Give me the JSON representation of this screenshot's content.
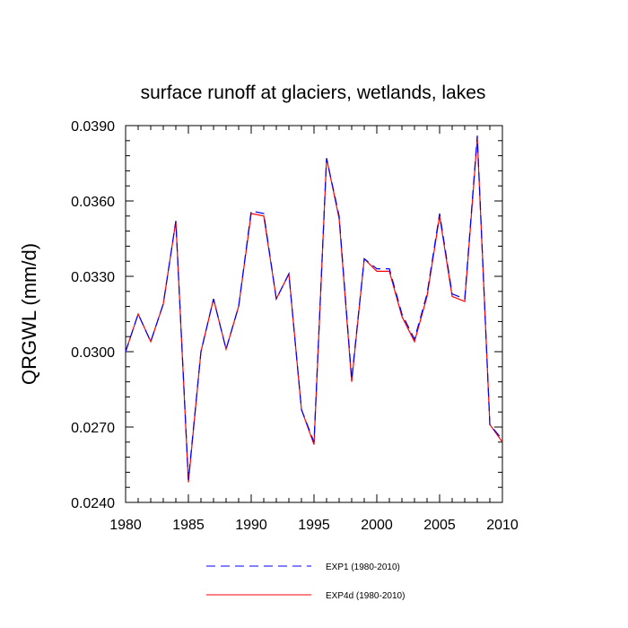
{
  "chart_data": {
    "type": "line",
    "title": "surface runoff at glaciers, wetlands, lakes",
    "xlabel": "",
    "ylabel": "QRGWL  (mm/d)",
    "xlim": [
      1980,
      2010
    ],
    "ylim": [
      0.024,
      0.039
    ],
    "x_ticks": [
      1980,
      1985,
      1990,
      1995,
      2000,
      2005,
      2010
    ],
    "y_ticks": [
      "0.0240",
      "0.0270",
      "0.0300",
      "0.0330",
      "0.0360",
      "0.0390"
    ],
    "x": [
      1980,
      1981,
      1982,
      1983,
      1984,
      1985,
      1986,
      1987,
      1988,
      1989,
      1990,
      1991,
      1992,
      1993,
      1994,
      1995,
      1996,
      1997,
      1998,
      1999,
      2000,
      2001,
      2002,
      2003,
      2004,
      2005,
      2006,
      2007,
      2008,
      2009,
      2010
    ],
    "series": [
      {
        "name": "EXP1 (1980-2010)",
        "color": "#0000ff",
        "dash": "dashed",
        "values": [
          0.03,
          0.0315,
          0.0304,
          0.0319,
          0.0352,
          0.0249,
          0.03,
          0.0321,
          0.0301,
          0.0318,
          0.0356,
          0.0355,
          0.0321,
          0.0331,
          0.0277,
          0.0264,
          0.0377,
          0.0354,
          0.0289,
          0.0337,
          0.0333,
          0.0333,
          0.0315,
          0.0305,
          0.0323,
          0.0355,
          0.0323,
          0.0321,
          0.0386,
          0.0271,
          0.0265
        ]
      },
      {
        "name": "EXP4d (1980-2010)",
        "color": "#ff0000",
        "dash": "solid",
        "values": [
          0.03,
          0.0315,
          0.0304,
          0.0319,
          0.0352,
          0.0248,
          0.03,
          0.0321,
          0.0301,
          0.0318,
          0.0355,
          0.0354,
          0.0321,
          0.0331,
          0.0277,
          0.0263,
          0.0377,
          0.0353,
          0.0288,
          0.0337,
          0.0332,
          0.0332,
          0.0314,
          0.0304,
          0.0322,
          0.0354,
          0.0322,
          0.032,
          0.0385,
          0.0271,
          0.0264
        ]
      }
    ],
    "grid": false,
    "legend": "bottom"
  }
}
